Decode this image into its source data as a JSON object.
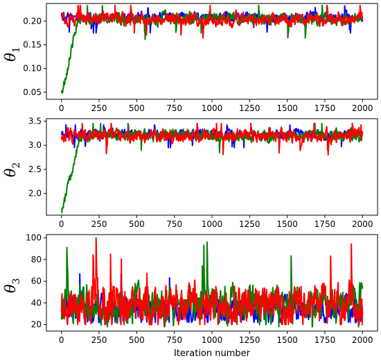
{
  "chart_data": [
    {
      "type": "line",
      "ylabel": "θ",
      "ylabel_sub": "1",
      "xlabel": "",
      "xlim": [
        -100,
        2100
      ],
      "ylim": [
        0.035,
        0.237
      ],
      "xticks": [
        0,
        250,
        500,
        750,
        1000,
        1250,
        1500,
        1750,
        2000
      ],
      "yticks": [
        0.05,
        0.1,
        0.15,
        0.2
      ],
      "ytick_labels": [
        "0.05",
        "0.10",
        "0.15",
        "0.20"
      ],
      "grid": false,
      "series": [
        {
          "color": "#0000ff",
          "iterations": 2000,
          "start": 0.212,
          "mean": 0.208,
          "spread": 0.007,
          "min": 0.175,
          "max": 0.232,
          "burn_in": 0
        },
        {
          "color": "#008000",
          "iterations": 2000,
          "start": 0.047,
          "mean": 0.205,
          "spread": 0.008,
          "min": 0.045,
          "max": 0.233,
          "burn_in": 110
        },
        {
          "color": "#ff0000",
          "iterations": 2000,
          "start": 0.212,
          "mean": 0.204,
          "spread": 0.009,
          "min": 0.155,
          "max": 0.233,
          "burn_in": 0
        }
      ]
    },
    {
      "type": "line",
      "ylabel": "θ",
      "ylabel_sub": "2",
      "xlabel": "",
      "xlim": [
        -100,
        2100
      ],
      "ylim": [
        1.55,
        3.55
      ],
      "xticks": [
        0,
        250,
        500,
        750,
        1000,
        1250,
        1500,
        1750,
        2000
      ],
      "yticks": [
        2.0,
        2.5,
        3.0,
        3.5
      ],
      "ytick_labels": [
        "2.0",
        "2.5",
        "3.0",
        "3.5"
      ],
      "grid": false,
      "series": [
        {
          "color": "#0000ff",
          "iterations": 2000,
          "start": 3.3,
          "mean": 3.22,
          "spread": 0.07,
          "min": 2.95,
          "max": 3.42,
          "burn_in": 0
        },
        {
          "color": "#008000",
          "iterations": 2000,
          "start": 1.6,
          "mean": 3.2,
          "spread": 0.08,
          "min": 1.6,
          "max": 3.45,
          "burn_in": 120
        },
        {
          "color": "#ff0000",
          "iterations": 2000,
          "start": 3.3,
          "mean": 3.2,
          "spread": 0.09,
          "min": 2.8,
          "max": 3.45,
          "burn_in": 0
        }
      ]
    },
    {
      "type": "line",
      "ylabel": "θ",
      "ylabel_sub": "3",
      "xlabel": "Iteration number",
      "xlim": [
        -100,
        2100
      ],
      "ylim": [
        14,
        103
      ],
      "xticks": [
        0,
        250,
        500,
        750,
        1000,
        1250,
        1500,
        1750,
        2000
      ],
      "yticks": [
        20,
        40,
        60,
        80,
        100
      ],
      "ytick_labels": [
        "20",
        "40",
        "60",
        "80",
        "100"
      ],
      "grid": false,
      "series": [
        {
          "color": "#0000ff",
          "iterations": 2000,
          "start": 30,
          "mean": 34,
          "spread": 8,
          "min": 22,
          "max": 78,
          "burn_in": 0
        },
        {
          "color": "#008000",
          "iterations": 2000,
          "start": 20,
          "mean": 38,
          "spread": 11,
          "min": 18,
          "max": 99,
          "burn_in": 0
        },
        {
          "color": "#ff0000",
          "iterations": 2000,
          "start": 30,
          "mean": 38,
          "spread": 12,
          "min": 20,
          "max": 100,
          "burn_in": 0
        }
      ]
    }
  ]
}
